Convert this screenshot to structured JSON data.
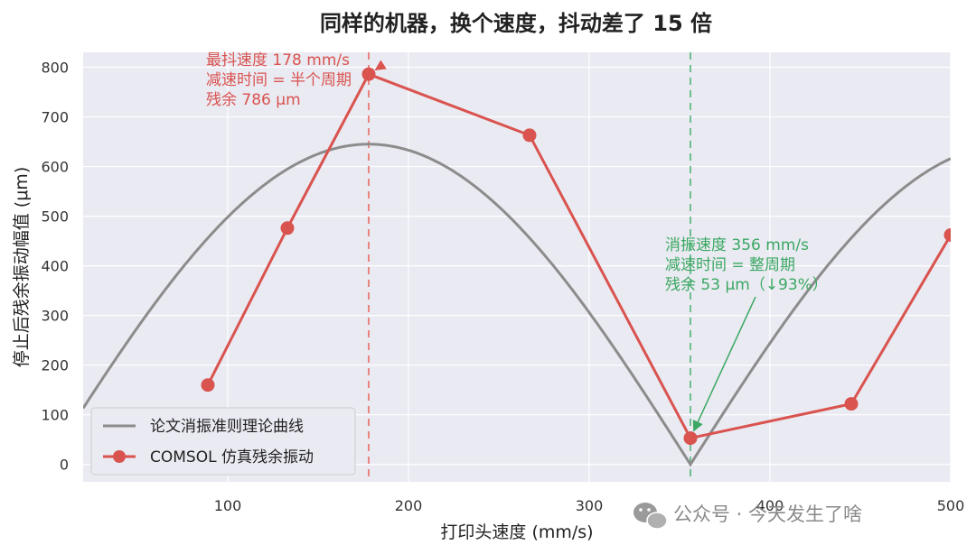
{
  "chart_data": {
    "type": "line",
    "title": "同样的机器，换个速度，抖动差了 15 倍",
    "xlabel": "打印头速度 (mm/s)",
    "ylabel": "停止后残余振动幅值 (μm)",
    "xlim": [
      20,
      500
    ],
    "ylim": [
      -35,
      830
    ],
    "x_ticks": [
      100,
      200,
      300,
      400,
      500
    ],
    "y_ticks": [
      0,
      100,
      200,
      300,
      400,
      500,
      600,
      700,
      800
    ],
    "grid": true,
    "legend_position": "lower-left",
    "series": [
      {
        "name": "论文消振准则理论曲线",
        "kind": "theory-curve",
        "color": "#8c8c8c",
        "peak_x": 178,
        "peak_y": 645,
        "zero_x": 356,
        "x": [
          20,
          60,
          100,
          140,
          178,
          220,
          260,
          300,
          330,
          356,
          380,
          420,
          460,
          500
        ],
        "y": [
          114,
          336,
          502,
          608,
          645,
          599,
          478,
          293,
          145,
          0,
          132,
          344,
          514,
          614
        ]
      },
      {
        "name": "COMSOL 仿真残余振动",
        "kind": "simulation",
        "color": "#d9534f",
        "x": [
          89,
          133,
          178,
          267,
          356,
          445,
          500
        ],
        "y": [
          160,
          476,
          786,
          663,
          53,
          122,
          462
        ]
      }
    ],
    "vlines": [
      {
        "x": 178,
        "color": "#e8857f"
      },
      {
        "x": 356,
        "color": "#6fbf8f"
      }
    ],
    "annotations": [
      {
        "lines": [
          "最抖速度 178 mm/s",
          "减速时间 = 半个周期",
          "残余 786 μm"
        ],
        "color": "#d9534f",
        "text_x": 88,
        "text_y": 805,
        "arrow_to": [
          178,
          786
        ]
      },
      {
        "lines": [
          "消振速度 356 mm/s",
          "减速时间 = 整周期",
          "残余 53 μm（↓93%）"
        ],
        "color": "#3aa862",
        "text_x": 342,
        "text_y": 432,
        "arrow_to": [
          356,
          53
        ]
      }
    ]
  },
  "watermark": {
    "text": "公众号 · 今天发生了啥",
    "icon": "wechat-icon"
  }
}
